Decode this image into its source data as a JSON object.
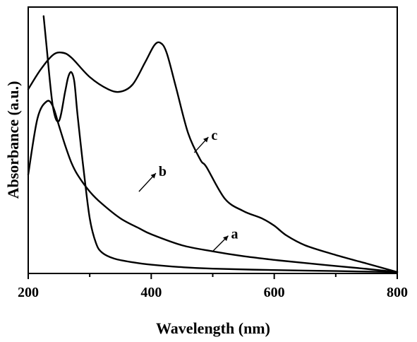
{
  "chart_data": {
    "type": "line",
    "xlabel": "Wavelength (nm)",
    "ylabel": "Absorbance (a.u.)",
    "xlim": [
      200,
      800
    ],
    "ylim": [
      0,
      1
    ],
    "x_ticks": [
      "200",
      "400",
      "600",
      "800"
    ],
    "y_ticks_labeled": false,
    "grid": false,
    "legend": "none",
    "series": [
      {
        "name": "a",
        "x": [
          200,
          215,
          230,
          240,
          250,
          260,
          270,
          280,
          300,
          320,
          350,
          380,
          400,
          450,
          500,
          550,
          600,
          650,
          700,
          750,
          800
        ],
        "y": [
          0.4,
          0.63,
          0.7,
          0.68,
          0.6,
          0.52,
          0.45,
          0.4,
          0.33,
          0.28,
          0.22,
          0.18,
          0.155,
          0.11,
          0.085,
          0.065,
          0.05,
          0.037,
          0.025,
          0.013,
          0.0
        ]
      },
      {
        "name": "b",
        "x": [
          225,
          230,
          240,
          250,
          260,
          265,
          270,
          275,
          280,
          290,
          300,
          310,
          320,
          340,
          370,
          400,
          450,
          500,
          600,
          700,
          800
        ],
        "y": [
          1.05,
          0.92,
          0.68,
          0.62,
          0.74,
          0.8,
          0.82,
          0.78,
          0.65,
          0.42,
          0.22,
          0.12,
          0.08,
          0.055,
          0.04,
          0.03,
          0.02,
          0.014,
          0.008,
          0.004,
          0.0
        ]
      },
      {
        "name": "c",
        "x": [
          200,
          220,
          240,
          255,
          270,
          300,
          330,
          350,
          370,
          390,
          405,
          415,
          425,
          440,
          460,
          480,
          490,
          520,
          550,
          580,
          600,
          620,
          650,
          700,
          750,
          800
        ],
        "y": [
          0.75,
          0.83,
          0.89,
          0.9,
          0.88,
          0.8,
          0.75,
          0.74,
          0.77,
          0.86,
          0.93,
          0.94,
          0.9,
          0.76,
          0.57,
          0.46,
          0.43,
          0.3,
          0.25,
          0.22,
          0.19,
          0.15,
          0.11,
          0.07,
          0.035,
          0.0
        ]
      }
    ],
    "annotations": [
      {
        "label": "a",
        "target_x": 500,
        "target_y": 0.085
      },
      {
        "label": "b",
        "target_x": 380,
        "target_y": 0.33
      },
      {
        "label": "c",
        "target_x": 470,
        "target_y": 0.49
      }
    ]
  }
}
